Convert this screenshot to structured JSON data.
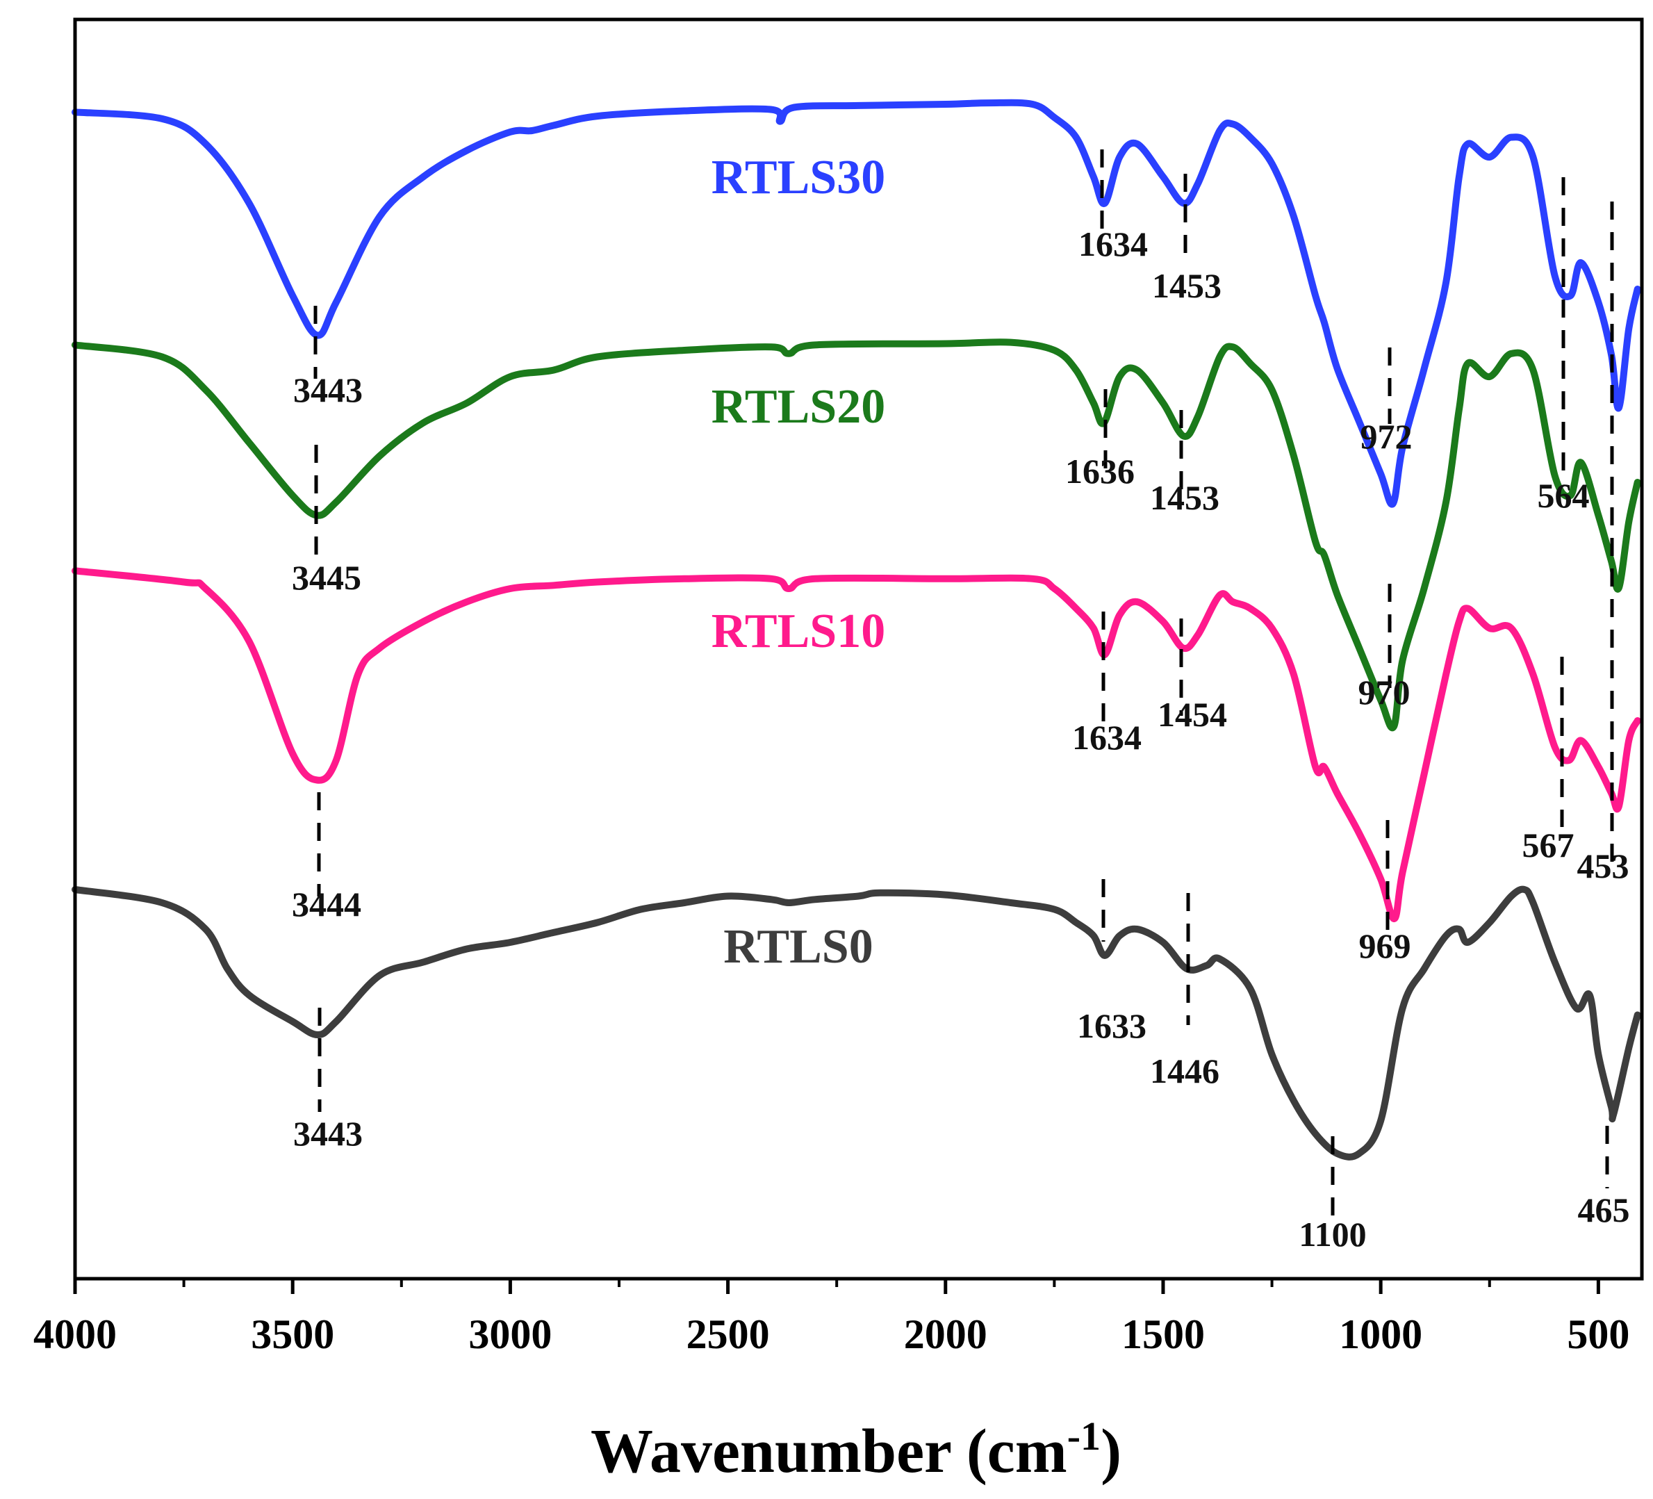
{
  "chart_data": {
    "type": "line",
    "title": "",
    "xlabel": "Wavenumber (cm",
    "xlabel_sup": "-1",
    "xlabel_close": ")",
    "ylabel": "",
    "xlim": [
      4000,
      400
    ],
    "x_reversed": true,
    "x_ticks": [
      "4000",
      "3500",
      "3000",
      "2500",
      "2000",
      "1500",
      "1000",
      "500"
    ],
    "x_tick_values": [
      4000,
      3500,
      3000,
      2500,
      2000,
      1500,
      1000,
      500
    ],
    "series": [
      {
        "name": "RTLS30",
        "color": "#2a40ff",
        "points": [
          [
            4000,
            12
          ],
          [
            3800,
            22
          ],
          [
            3700,
            60
          ],
          [
            3600,
            150
          ],
          [
            3500,
            290
          ],
          [
            3443,
            350
          ],
          [
            3400,
            300
          ],
          [
            3300,
            170
          ],
          [
            3200,
            110
          ],
          [
            3100,
            70
          ],
          [
            3000,
            42
          ],
          [
            2950,
            40
          ],
          [
            2900,
            32
          ],
          [
            2800,
            18
          ],
          [
            2600,
            10
          ],
          [
            2400,
            8
          ],
          [
            2380,
            26
          ],
          [
            2350,
            5
          ],
          [
            2200,
            2
          ],
          [
            2000,
            0
          ],
          [
            1900,
            -2
          ],
          [
            1800,
            0
          ],
          [
            1750,
            20
          ],
          [
            1700,
            50
          ],
          [
            1660,
            110
          ],
          [
            1634,
            150
          ],
          [
            1600,
            80
          ],
          [
            1560,
            60
          ],
          [
            1500,
            110
          ],
          [
            1453,
            150
          ],
          [
            1420,
            120
          ],
          [
            1370,
            40
          ],
          [
            1340,
            30
          ],
          [
            1300,
            50
          ],
          [
            1250,
            90
          ],
          [
            1200,
            170
          ],
          [
            1150,
            290
          ],
          [
            1130,
            330
          ],
          [
            1100,
            400
          ],
          [
            1050,
            480
          ],
          [
            1000,
            560
          ],
          [
            972,
            605
          ],
          [
            950,
            520
          ],
          [
            900,
            400
          ],
          [
            850,
            270
          ],
          [
            820,
            110
          ],
          [
            800,
            60
          ],
          [
            750,
            80
          ],
          [
            700,
            50
          ],
          [
            650,
            80
          ],
          [
            600,
            260
          ],
          [
            564,
            290
          ],
          [
            540,
            240
          ],
          [
            500,
            300
          ],
          [
            470,
            380
          ],
          [
            453,
            460
          ],
          [
            430,
            340
          ],
          [
            410,
            280
          ]
        ]
      },
      {
        "name": "RTLS20",
        "color": "#1b7a1b",
        "points": [
          [
            4000,
            12
          ],
          [
            3800,
            30
          ],
          [
            3700,
            80
          ],
          [
            3600,
            160
          ],
          [
            3500,
            240
          ],
          [
            3445,
            270
          ],
          [
            3400,
            250
          ],
          [
            3300,
            180
          ],
          [
            3200,
            130
          ],
          [
            3100,
            100
          ],
          [
            3000,
            60
          ],
          [
            2900,
            50
          ],
          [
            2800,
            30
          ],
          [
            2600,
            20
          ],
          [
            2400,
            15
          ],
          [
            2360,
            25
          ],
          [
            2300,
            12
          ],
          [
            2000,
            10
          ],
          [
            1850,
            8
          ],
          [
            1750,
            20
          ],
          [
            1700,
            50
          ],
          [
            1660,
            100
          ],
          [
            1636,
            130
          ],
          [
            1600,
            60
          ],
          [
            1560,
            50
          ],
          [
            1500,
            100
          ],
          [
            1453,
            150
          ],
          [
            1420,
            120
          ],
          [
            1370,
            30
          ],
          [
            1340,
            15
          ],
          [
            1300,
            40
          ],
          [
            1250,
            80
          ],
          [
            1200,
            180
          ],
          [
            1150,
            310
          ],
          [
            1130,
            330
          ],
          [
            1100,
            390
          ],
          [
            1050,
            470
          ],
          [
            1000,
            550
          ],
          [
            970,
            590
          ],
          [
            950,
            490
          ],
          [
            900,
            380
          ],
          [
            850,
            250
          ],
          [
            820,
            110
          ],
          [
            800,
            40
          ],
          [
            750,
            60
          ],
          [
            700,
            25
          ],
          [
            650,
            50
          ],
          [
            600,
            210
          ],
          [
            564,
            240
          ],
          [
            540,
            190
          ],
          [
            500,
            270
          ],
          [
            470,
            340
          ],
          [
            453,
            380
          ],
          [
            430,
            280
          ],
          [
            410,
            220
          ]
        ]
      },
      {
        "name": "RTLS10",
        "color": "#ff1a8c",
        "points": [
          [
            4000,
            -7
          ],
          [
            3750,
            10
          ],
          [
            3700,
            20
          ],
          [
            3600,
            100
          ],
          [
            3500,
            270
          ],
          [
            3444,
            310
          ],
          [
            3400,
            280
          ],
          [
            3350,
            150
          ],
          [
            3300,
            110
          ],
          [
            3200,
            70
          ],
          [
            3100,
            40
          ],
          [
            3000,
            20
          ],
          [
            2900,
            15
          ],
          [
            2800,
            10
          ],
          [
            2600,
            5
          ],
          [
            2400,
            5
          ],
          [
            2360,
            20
          ],
          [
            2300,
            5
          ],
          [
            2000,
            5
          ],
          [
            1800,
            5
          ],
          [
            1750,
            20
          ],
          [
            1700,
            50
          ],
          [
            1660,
            80
          ],
          [
            1634,
            120
          ],
          [
            1600,
            60
          ],
          [
            1560,
            40
          ],
          [
            1500,
            70
          ],
          [
            1454,
            110
          ],
          [
            1420,
            90
          ],
          [
            1370,
            30
          ],
          [
            1340,
            40
          ],
          [
            1300,
            50
          ],
          [
            1250,
            80
          ],
          [
            1200,
            150
          ],
          [
            1150,
            290
          ],
          [
            1130,
            290
          ],
          [
            1100,
            330
          ],
          [
            1050,
            390
          ],
          [
            1000,
            460
          ],
          [
            969,
            520
          ],
          [
            950,
            450
          ],
          [
            900,
            300
          ],
          [
            850,
            150
          ],
          [
            820,
            70
          ],
          [
            800,
            50
          ],
          [
            750,
            80
          ],
          [
            700,
            80
          ],
          [
            650,
            150
          ],
          [
            600,
            260
          ],
          [
            567,
            280
          ],
          [
            540,
            250
          ],
          [
            500,
            290
          ],
          [
            470,
            330
          ],
          [
            453,
            350
          ],
          [
            430,
            250
          ],
          [
            410,
            220
          ]
        ]
      },
      {
        "name": "RTLS0",
        "color": "#3d3d3d",
        "points": [
          [
            4000,
            0
          ],
          [
            3800,
            20
          ],
          [
            3700,
            60
          ],
          [
            3650,
            120
          ],
          [
            3600,
            160
          ],
          [
            3500,
            200
          ],
          [
            3443,
            220
          ],
          [
            3400,
            200
          ],
          [
            3300,
            130
          ],
          [
            3200,
            110
          ],
          [
            3100,
            90
          ],
          [
            3000,
            80
          ],
          [
            2900,
            65
          ],
          [
            2800,
            50
          ],
          [
            2700,
            30
          ],
          [
            2600,
            20
          ],
          [
            2500,
            10
          ],
          [
            2400,
            15
          ],
          [
            2360,
            20
          ],
          [
            2300,
            15
          ],
          [
            2200,
            10
          ],
          [
            2150,
            5
          ],
          [
            2000,
            8
          ],
          [
            1850,
            20
          ],
          [
            1750,
            30
          ],
          [
            1700,
            50
          ],
          [
            1660,
            70
          ],
          [
            1634,
            100
          ],
          [
            1600,
            70
          ],
          [
            1560,
            60
          ],
          [
            1500,
            80
          ],
          [
            1446,
            120
          ],
          [
            1400,
            115
          ],
          [
            1370,
            105
          ],
          [
            1300,
            150
          ],
          [
            1250,
            250
          ],
          [
            1200,
            320
          ],
          [
            1150,
            370
          ],
          [
            1100,
            400
          ],
          [
            1050,
            400
          ],
          [
            1000,
            350
          ],
          [
            950,
            180
          ],
          [
            900,
            120
          ],
          [
            850,
            70
          ],
          [
            820,
            60
          ],
          [
            800,
            80
          ],
          [
            750,
            50
          ],
          [
            700,
            10
          ],
          [
            670,
            0
          ],
          [
            650,
            20
          ],
          [
            600,
            110
          ],
          [
            550,
            180
          ],
          [
            520,
            160
          ],
          [
            500,
            250
          ],
          [
            470,
            330
          ],
          [
            465,
            340
          ],
          [
            430,
            240
          ],
          [
            410,
            190
          ]
        ]
      }
    ],
    "series_labels": [
      "RTLS30",
      "RTLS20",
      "RTLS10",
      "RTLS0"
    ],
    "peak_annotations": [
      {
        "series": "RTLS30",
        "labels": [
          "3443",
          "1634",
          "1453",
          "972"
        ]
      },
      {
        "series": "RTLS20",
        "labels": [
          "3445",
          "1636",
          "1453",
          "970",
          "564"
        ]
      },
      {
        "series": "RTLS10",
        "labels": [
          "3444",
          "1634",
          "1454",
          "969",
          "567",
          "453"
        ]
      },
      {
        "series": "RTLS0",
        "labels": [
          "3443",
          "1633",
          "1446",
          "1100",
          "465"
        ]
      }
    ]
  }
}
